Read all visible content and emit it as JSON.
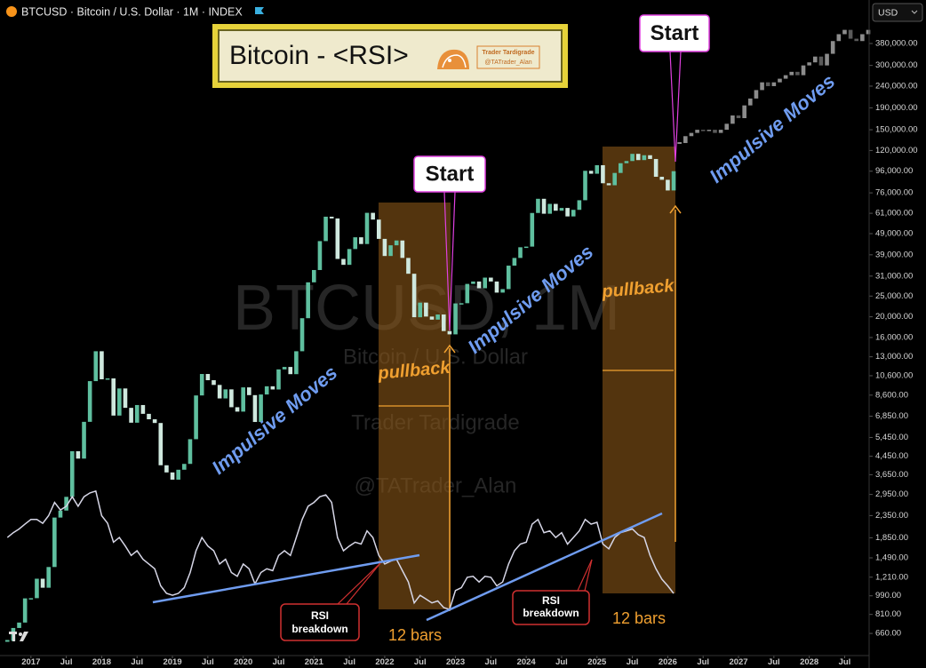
{
  "header": {
    "symbol_line": "BTCUSD · Bitcoin / U.S. Dollar · 1M · INDEX",
    "currency": "USD"
  },
  "chart_data": {
    "type": "candlestick",
    "title": "Bitcoin - <RSI>",
    "badge": [
      "Trader Tardigrade",
      "@TATrader_Alan"
    ],
    "watermark": [
      "BTCUSD, 1M",
      "Bitcoin / U.S. Dollar",
      "Trader Tardigrade",
      "@TATrader_Alan"
    ],
    "log_scale": true,
    "xlim": [
      "2016-07",
      "2028-11"
    ],
    "xticks": [
      {
        "value": "2017-01",
        "label": "2017"
      },
      {
        "value": "2017-07",
        "label": "Jul"
      },
      {
        "value": "2018-01",
        "label": "2018"
      },
      {
        "value": "2018-07",
        "label": "Jul"
      },
      {
        "value": "2019-01",
        "label": "2019"
      },
      {
        "value": "2019-07",
        "label": "Jul"
      },
      {
        "value": "2020-01",
        "label": "2020"
      },
      {
        "value": "2020-07",
        "label": "Jul"
      },
      {
        "value": "2021-01",
        "label": "2021"
      },
      {
        "value": "2021-07",
        "label": "Jul"
      },
      {
        "value": "2022-01",
        "label": "2022"
      },
      {
        "value": "2022-07",
        "label": "Jul"
      },
      {
        "value": "2023-01",
        "label": "2023"
      },
      {
        "value": "2023-07",
        "label": "Jul"
      },
      {
        "value": "2024-01",
        "label": "2024"
      },
      {
        "value": "2024-07",
        "label": "Jul"
      },
      {
        "value": "2025-01",
        "label": "2025"
      },
      {
        "value": "2025-07",
        "label": "Jul"
      },
      {
        "value": "2026-01",
        "label": "2026"
      },
      {
        "value": "2026-07",
        "label": "Jul"
      },
      {
        "value": "2027-01",
        "label": "2027"
      },
      {
        "value": "2027-07",
        "label": "Jul"
      },
      {
        "value": "2028-01",
        "label": "2028"
      },
      {
        "value": "2028-07",
        "label": "Jul"
      }
    ],
    "ylim": [
      520,
      607000
    ],
    "yticks": [
      {
        "value": 380000,
        "label": "380,000.00"
      },
      {
        "value": 300000,
        "label": "300,000.00"
      },
      {
        "value": 240000,
        "label": "240,000.00"
      },
      {
        "value": 190000,
        "label": "190,000.00"
      },
      {
        "value": 150000,
        "label": "150,000.00"
      },
      {
        "value": 120000,
        "label": "120,000.00"
      },
      {
        "value": 96000,
        "label": "96,000.00"
      },
      {
        "value": 76000,
        "label": "76,000.00"
      },
      {
        "value": 61000,
        "label": "61,000.00"
      },
      {
        "value": 49000,
        "label": "49,000.00"
      },
      {
        "value": 39000,
        "label": "39,000.00"
      },
      {
        "value": 31000,
        "label": "31,000.00"
      },
      {
        "value": 25000,
        "label": "25,000.00"
      },
      {
        "value": 20000,
        "label": "20,000.00"
      },
      {
        "value": 16000,
        "label": "16,000.00"
      },
      {
        "value": 13000,
        "label": "13,000.00"
      },
      {
        "value": 10600,
        "label": "10,600.00"
      },
      {
        "value": 8600,
        "label": "8,600.00"
      },
      {
        "value": 6850,
        "label": "6,850.00"
      },
      {
        "value": 5450,
        "label": "5,450.00"
      },
      {
        "value": 4450,
        "label": "4,450.00"
      },
      {
        "value": 3650,
        "label": "3,650.00"
      },
      {
        "value": 2950,
        "label": "2,950.00"
      },
      {
        "value": 2350,
        "label": "2,350.00"
      },
      {
        "value": 1850,
        "label": "1,850.00"
      },
      {
        "value": 1490,
        "label": "1,490.00"
      },
      {
        "value": 1210,
        "label": "1,210.00"
      },
      {
        "value": 990,
        "label": "990.00"
      },
      {
        "value": 810,
        "label": "810.00"
      },
      {
        "value": 660,
        "label": "660.00"
      }
    ],
    "y2lim": [
      25,
      100
    ],
    "series": [
      {
        "color": "#5fbf9f",
        "down_color": "#cfe8de",
        "x": [
          "2016-09",
          "2016-10",
          "2016-11",
          "2016-12",
          "2017-01",
          "2017-02",
          "2017-03",
          "2017-04",
          "2017-05",
          "2017-06",
          "2017-07",
          "2017-08",
          "2017-09",
          "2017-10",
          "2017-11",
          "2017-12",
          "2018-01",
          "2018-02",
          "2018-03",
          "2018-04",
          "2018-05",
          "2018-06",
          "2018-07",
          "2018-08",
          "2018-09",
          "2018-10",
          "2018-11",
          "2018-12",
          "2019-01",
          "2019-02",
          "2019-03",
          "2019-04",
          "2019-05",
          "2019-06",
          "2019-07",
          "2019-08",
          "2019-09",
          "2019-10",
          "2019-11",
          "2019-12",
          "2020-01",
          "2020-02",
          "2020-03",
          "2020-04",
          "2020-05",
          "2020-06",
          "2020-07",
          "2020-08",
          "2020-09",
          "2020-10",
          "2020-11",
          "2020-12",
          "2021-01",
          "2021-02",
          "2021-03",
          "2021-04",
          "2021-05",
          "2021-06",
          "2021-07",
          "2021-08",
          "2021-09",
          "2021-10",
          "2021-11",
          "2021-12",
          "2022-01",
          "2022-02",
          "2022-03",
          "2022-04",
          "2022-05",
          "2022-06",
          "2022-07",
          "2022-08",
          "2022-09",
          "2022-10",
          "2022-11",
          "2022-12",
          "2023-01",
          "2023-02",
          "2023-03",
          "2023-04",
          "2023-05",
          "2023-06",
          "2023-07",
          "2023-08",
          "2023-09",
          "2023-10",
          "2023-11",
          "2023-12",
          "2024-01",
          "2024-02",
          "2024-03",
          "2024-04",
          "2024-05",
          "2024-06",
          "2024-07",
          "2024-08",
          "2024-09",
          "2024-10",
          "2024-11",
          "2024-12",
          "2025-01",
          "2025-02",
          "2025-03",
          "2025-04",
          "2025-05",
          "2025-06",
          "2025-07",
          "2025-08",
          "2025-09",
          "2025-10",
          "2025-11",
          "2025-12",
          "2026-01",
          "2026-02"
        ],
        "values": [
          609,
          700,
          742,
          963,
          965,
          1190,
          1080,
          1350,
          2300,
          2480,
          2875,
          4700,
          4340,
          6450,
          10000,
          13800,
          10200,
          10300,
          6900,
          9240,
          7500,
          6390,
          7730,
          7030,
          6630,
          6370,
          4040,
          3740,
          3460,
          3850,
          4100,
          5350,
          8570,
          10800,
          10100,
          9600,
          8300,
          9150,
          7550,
          7200,
          9350,
          8600,
          6440,
          8660,
          9460,
          9140,
          11350,
          11650,
          10780,
          13800,
          19700,
          28990,
          33100,
          45200,
          58800,
          57700,
          37300,
          35000,
          41500,
          47100,
          43800,
          61300,
          57000,
          46300,
          38500,
          43200,
          45500,
          37700,
          31800,
          19900,
          23300,
          20050,
          19400,
          20500,
          17150,
          16550,
          23100,
          23150,
          28500,
          29250,
          27200,
          30500,
          29250,
          25950,
          26950,
          34700,
          37700,
          42300,
          42600,
          61200,
          71300,
          60700,
          67500,
          62700,
          64600,
          58970,
          63300,
          70200,
          96400,
          93400,
          102400,
          84300,
          82500,
          94200,
          104600,
          107100,
          115700,
          108200,
          114000,
          109500,
          90400,
          87500,
          78000,
          96000
        ]
      },
      {
        "color": "#8c8c8c",
        "down_color": "#5a5a5a",
        "x": [
          "2026-03",
          "2026-04",
          "2026-05",
          "2026-06",
          "2026-07",
          "2026-08",
          "2026-09",
          "2026-10",
          "2026-11",
          "2026-12",
          "2027-01",
          "2027-02",
          "2027-03",
          "2027-04",
          "2027-05",
          "2027-06",
          "2027-07",
          "2027-08",
          "2027-09",
          "2027-10",
          "2027-11",
          "2027-12",
          "2028-01",
          "2028-02",
          "2028-03",
          "2028-04",
          "2028-05",
          "2028-06",
          "2028-07",
          "2028-08",
          "2028-09",
          "2028-10",
          "2028-11"
        ],
        "values": [
          130000,
          140000,
          145000,
          150000,
          148000,
          150000,
          145000,
          150000,
          160000,
          175000,
          170000,
          195000,
          210000,
          230000,
          250000,
          240000,
          250000,
          260000,
          270000,
          280000,
          270000,
          300000,
          310000,
          330000,
          300000,
          340000,
          390000,
          420000,
          440000,
          400000,
          390000,
          420000,
          440000
        ]
      },
      {
        "type": "line",
        "axis": "y2",
        "color": "#d6d6e6",
        "x": [
          "2016-09",
          "2016-10",
          "2016-11",
          "2016-12",
          "2017-01",
          "2017-02",
          "2017-03",
          "2017-04",
          "2017-05",
          "2017-06",
          "2017-07",
          "2017-08",
          "2017-09",
          "2017-10",
          "2017-11",
          "2017-12",
          "2018-01",
          "2018-02",
          "2018-03",
          "2018-04",
          "2018-05",
          "2018-06",
          "2018-07",
          "2018-08",
          "2018-09",
          "2018-10",
          "2018-11",
          "2018-12",
          "2019-01",
          "2019-02",
          "2019-03",
          "2019-04",
          "2019-05",
          "2019-06",
          "2019-07",
          "2019-08",
          "2019-09",
          "2019-10",
          "2019-11",
          "2019-12",
          "2020-01",
          "2020-02",
          "2020-03",
          "2020-04",
          "2020-05",
          "2020-06",
          "2020-07",
          "2020-08",
          "2020-09",
          "2020-10",
          "2020-11",
          "2020-12",
          "2021-01",
          "2021-02",
          "2021-03",
          "2021-04",
          "2021-05",
          "2021-06",
          "2021-07",
          "2021-08",
          "2021-09",
          "2021-10",
          "2021-11",
          "2021-12",
          "2022-01",
          "2022-02",
          "2022-03",
          "2022-04",
          "2022-05",
          "2022-06",
          "2022-07",
          "2022-08",
          "2022-09",
          "2022-10",
          "2022-11",
          "2022-12",
          "2023-01",
          "2023-02",
          "2023-03",
          "2023-04",
          "2023-05",
          "2023-06",
          "2023-07",
          "2023-08",
          "2023-09",
          "2023-10",
          "2023-11",
          "2023-12",
          "2024-01",
          "2024-02",
          "2024-03",
          "2024-04",
          "2024-05",
          "2024-06",
          "2024-07",
          "2024-08",
          "2024-09",
          "2024-10",
          "2024-11",
          "2024-12",
          "2025-01",
          "2025-02",
          "2025-03",
          "2025-04",
          "2025-05",
          "2025-06",
          "2025-07",
          "2025-08",
          "2025-09",
          "2025-10",
          "2025-11",
          "2025-12",
          "2026-01",
          "2026-02"
        ],
        "values": [
          69.5,
          72,
          74,
          76.6,
          79,
          79,
          77,
          81,
          88,
          84,
          86,
          91,
          86,
          91,
          93,
          94,
          81,
          77,
          67,
          69.5,
          65,
          60,
          62.5,
          58,
          55.5,
          53,
          44,
          40,
          39,
          40,
          43,
          51,
          62.5,
          69.5,
          65,
          62.5,
          55.5,
          58,
          51,
          49,
          55.5,
          53,
          45,
          51,
          53,
          52,
          60,
          62.5,
          60,
          69.5,
          79,
          86,
          88,
          91,
          92,
          88,
          69.5,
          62.5,
          65,
          67,
          66,
          73,
          69.5,
          60,
          55.5,
          57,
          58,
          52,
          46,
          35,
          39,
          37,
          35,
          36,
          32.5,
          31.5,
          41.5,
          43,
          48.5,
          49,
          46,
          49,
          48.5,
          44,
          46,
          55.5,
          62.5,
          66,
          67,
          76.5,
          79,
          72,
          73,
          69.5,
          72,
          66,
          69.5,
          73,
          79,
          76.5,
          77.5,
          66,
          63.5,
          69.5,
          72,
          73,
          74,
          71,
          69.5,
          60,
          53,
          47.5,
          44,
          40
        ]
      }
    ],
    "annotations": {
      "start": [
        "Start",
        "Start"
      ],
      "pullback": [
        "pullback",
        "pullback"
      ],
      "impulsive": [
        "Impulsive Moves",
        "Impulsive Moves",
        "Impulsive Moves"
      ],
      "rsi_breakdown": [
        [
          "RSI",
          "breakdown"
        ],
        [
          "RSI",
          "breakdown"
        ]
      ],
      "bars": [
        "12 bars",
        "12 bars"
      ]
    }
  }
}
